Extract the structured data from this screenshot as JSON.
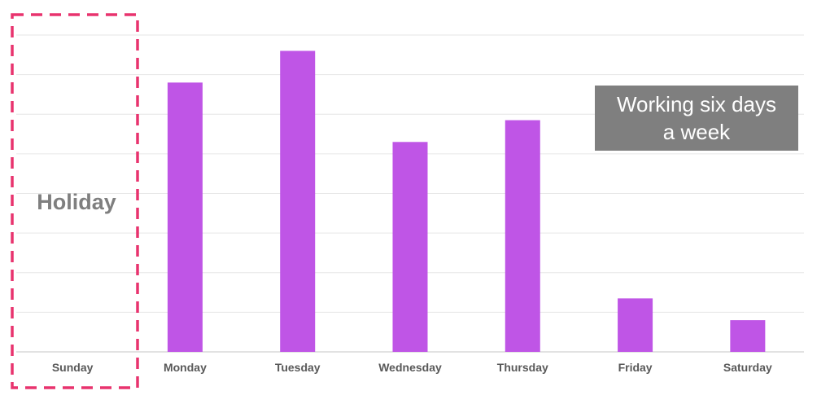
{
  "chart_data": {
    "type": "bar",
    "categories": [
      "Sunday",
      "Monday",
      "Tuesday",
      "Wednesday",
      "Thursday",
      "Friday",
      "Saturday"
    ],
    "values": [
      0,
      6.8,
      7.6,
      5.3,
      5.85,
      1.35,
      0.8
    ],
    "ylim": [
      0,
      8
    ],
    "grid": true,
    "bar_color": "#bf55e6",
    "grid_color": "#e6e6e6",
    "axis_color": "#d9d9d9",
    "annotations": {
      "holiday": {
        "label": "Holiday",
        "category": "Sunday",
        "border_color": "#e8336e"
      },
      "note": {
        "lines": [
          "Working six days",
          "a week"
        ],
        "background": "#7f7f7f"
      }
    }
  }
}
